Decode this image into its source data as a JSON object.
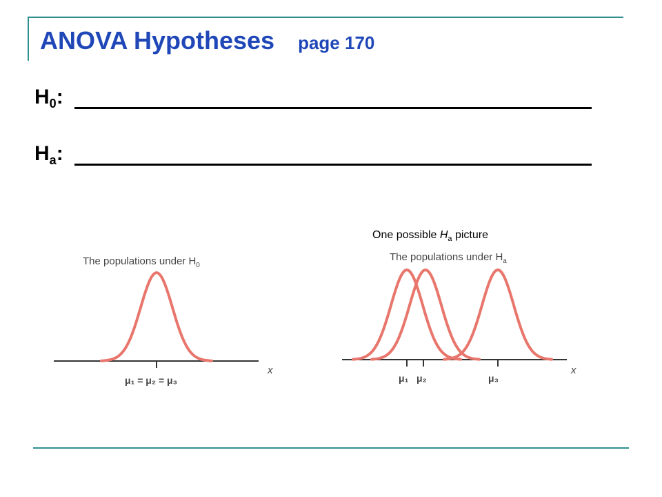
{
  "slide": {
    "title": "ANOVA Hypotheses",
    "page_ref": "page 170",
    "h0_label": "H",
    "h0_sub": "0",
    "ha_label": "H",
    "ha_sub": "a",
    "colon": ":"
  },
  "caption": {
    "prefix": "One possible ",
    "h": "H",
    "sub": "a",
    "suffix": "  picture"
  },
  "figure_left": {
    "title": "The populations under H",
    "title_sub": "0",
    "x_label": "x",
    "mu_label": "μ₁ = μ₂ = μ₃"
  },
  "figure_right": {
    "title": "The populations under H",
    "title_sub": "a",
    "x_label": "x",
    "mu1": "μ₁",
    "mu2": "μ₂",
    "mu3": "μ₃"
  },
  "colors": {
    "title": "#1f47b8",
    "frame": "#2f8f8f",
    "curve": "#e8766c"
  }
}
